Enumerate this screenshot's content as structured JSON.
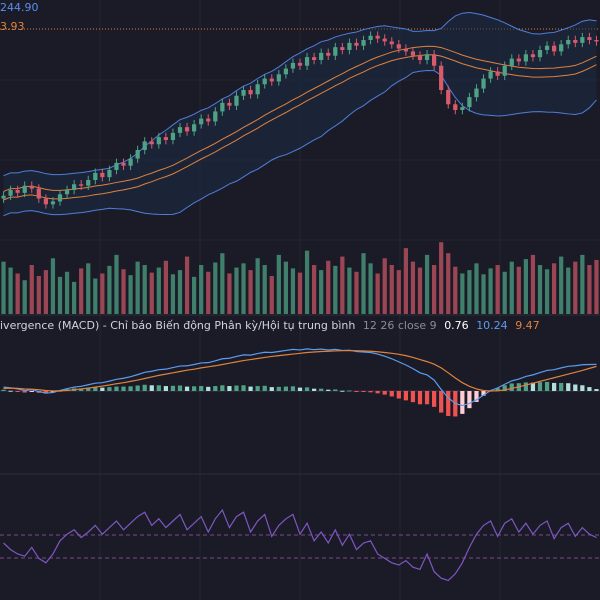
{
  "price_pane": {
    "upper_band_label": "244.90",
    "lower_band_label": "3.93",
    "colors": {
      "upper_label": "#5b8def",
      "lower_label": "#e0823d",
      "band_fill": "#1e2a44",
      "band_line": "#4e7fdd",
      "basis_line": "#e0823d",
      "up": "#4fa286",
      "down": "#d75b6b"
    }
  },
  "macd_legend": {
    "title": "ivergence (MACD) - Chỉ báo Biến động Phân kỳ/Hội tụ trung bình",
    "params": "12 26 close 9",
    "histogram": "0.76",
    "macd": "10.24",
    "signal": "9.47",
    "colors": {
      "histogram": "#ffffff",
      "macd": "#5b9cf0",
      "signal": "#e0823d"
    }
  },
  "chart_data": [
    {
      "type": "candlestick",
      "panel": "price",
      "overlays": [
        "bollinger-bands"
      ],
      "upper_band_last": 244.9,
      "close": [
        188,
        192,
        190,
        195,
        193,
        186,
        182,
        184,
        189,
        192,
        196,
        195,
        199,
        204,
        201,
        206,
        211,
        209,
        214,
        220,
        226,
        224,
        229,
        227,
        232,
        236,
        233,
        238,
        242,
        240,
        247,
        253,
        251,
        258,
        262,
        259,
        266,
        270,
        268,
        273,
        277,
        281,
        279,
        285,
        283,
        288,
        286,
        292,
        290,
        295,
        293,
        297,
        300,
        298,
        296,
        294,
        291,
        289,
        286,
        283,
        287,
        279,
        262,
        252,
        248,
        250,
        257,
        263,
        270,
        275,
        272,
        279,
        284,
        282,
        287,
        285,
        290,
        293,
        289,
        294,
        297,
        295,
        299,
        297,
        296
      ]
    },
    {
      "type": "bar",
      "panel": "volume",
      "values": [
        62,
        55,
        48,
        40,
        58,
        45,
        52,
        66,
        44,
        50,
        38,
        54,
        60,
        42,
        48,
        57,
        70,
        53,
        46,
        62,
        58,
        49,
        55,
        63,
        47,
        52,
        68,
        44,
        58,
        50,
        61,
        72,
        48,
        55,
        60,
        52,
        66,
        58,
        45,
        70,
        62,
        54,
        49,
        75,
        58,
        52,
        63,
        57,
        68,
        55,
        50,
        72,
        60,
        48,
        66,
        58,
        52,
        78,
        62,
        55,
        70,
        58,
        85,
        72,
        56,
        48,
        52,
        60,
        47,
        54,
        58,
        50,
        62,
        56,
        65,
        70,
        58,
        53,
        60,
        68,
        55,
        62,
        70,
        58,
        64
      ]
    },
    {
      "type": "line",
      "panel": "macd",
      "series": [
        {
          "name": "MACD",
          "values": [
            1.5,
            1.2,
            0.8,
            0.2,
            0.5,
            -0.2,
            -0.8,
            -0.6,
            0.2,
            0.9,
            1.5,
            1.8,
            2.4,
            3.0,
            3.2,
            3.8,
            4.5,
            4.9,
            5.5,
            6.3,
            7.2,
            7.6,
            8.2,
            8.4,
            9.0,
            9.6,
            9.7,
            10.2,
            10.8,
            10.9,
            11.6,
            12.4,
            12.6,
            13.3,
            13.9,
            13.8,
            14.4,
            14.9,
            14.8,
            15.2,
            15.6,
            16.0,
            15.8,
            16.2,
            15.9,
            16.1,
            15.8,
            16.0,
            15.6,
            15.7,
            15.2,
            15.0,
            14.8,
            14.2,
            13.4,
            12.4,
            11.2,
            10.0,
            8.6,
            7.0,
            6.2,
            4.2,
            0.6,
            -2.6,
            -4.8,
            -5.6,
            -4.8,
            -3.4,
            -1.6,
            0.2,
            1.2,
            2.6,
            3.9,
            4.6,
            5.6,
            6.2,
            7.1,
            7.9,
            8.2,
            8.9,
            9.5,
            9.7,
            10.1,
            10.2,
            10.24
          ]
        },
        {
          "name": "Signal",
          "values": [
            1.0,
            1.1,
            1.0,
            0.8,
            0.7,
            0.5,
            0.2,
            0.0,
            0.1,
            0.2,
            0.5,
            0.8,
            1.1,
            1.5,
            1.9,
            2.3,
            2.8,
            3.2,
            3.7,
            4.2,
            4.8,
            5.4,
            6.0,
            6.5,
            7.0,
            7.5,
            8.0,
            8.4,
            8.9,
            9.3,
            9.7,
            10.2,
            10.7,
            11.2,
            11.7,
            12.1,
            12.5,
            12.9,
            13.3,
            13.6,
            13.9,
            14.2,
            14.5,
            14.8,
            15.0,
            15.2,
            15.3,
            15.4,
            15.5,
            15.5,
            15.5,
            15.4,
            15.3,
            15.1,
            14.8,
            14.5,
            14.1,
            13.6,
            12.9,
            12.1,
            11.3,
            10.3,
            8.9,
            7.0,
            5.0,
            3.2,
            1.8,
            0.8,
            0.2,
            0.0,
            0.1,
            0.4,
            1.0,
            1.6,
            2.3,
            3.0,
            3.7,
            4.4,
            5.1,
            5.8,
            6.5,
            7.2,
            7.9,
            8.7,
            9.47
          ]
        }
      ],
      "histogram": [
        0.5,
        0.1,
        -0.2,
        -0.6,
        -0.2,
        -0.7,
        -1.0,
        -0.6,
        0.1,
        0.7,
        1.0,
        1.0,
        1.3,
        1.5,
        1.3,
        1.5,
        1.7,
        1.7,
        1.8,
        2.1,
        2.4,
        2.2,
        2.2,
        1.9,
        2.0,
        2.1,
        1.7,
        1.8,
        1.9,
        1.6,
        1.9,
        2.2,
        1.9,
        2.1,
        2.2,
        1.7,
        1.9,
        2.0,
        1.5,
        1.6,
        1.7,
        1.8,
        1.3,
        1.4,
        0.9,
        0.9,
        0.5,
        0.6,
        0.1,
        0.2,
        -0.3,
        -0.4,
        -0.5,
        -0.9,
        -1.4,
        -2.1,
        -2.9,
        -3.6,
        -4.3,
        -5.1,
        -5.1,
        -6.1,
        -8.3,
        -9.6,
        -9.8,
        -8.8,
        -6.6,
        -4.2,
        -1.8,
        0.2,
        1.1,
        2.2,
        2.9,
        3.0,
        3.3,
        3.2,
        3.4,
        3.5,
        3.1,
        3.1,
        3.0,
        2.5,
        2.2,
        1.5,
        0.76
      ]
    },
    {
      "type": "line",
      "panel": "oscillator",
      "values": [
        50,
        44,
        40,
        38,
        46,
        36,
        32,
        40,
        52,
        58,
        62,
        55,
        60,
        66,
        58,
        64,
        70,
        62,
        68,
        74,
        78,
        66,
        72,
        64,
        70,
        76,
        62,
        68,
        74,
        60,
        72,
        80,
        64,
        74,
        78,
        60,
        70,
        76,
        56,
        66,
        72,
        76,
        58,
        68,
        52,
        60,
        50,
        62,
        48,
        58,
        44,
        50,
        52,
        40,
        36,
        32,
        30,
        34,
        28,
        26,
        40,
        24,
        18,
        16,
        22,
        32,
        46,
        58,
        66,
        70,
        56,
        68,
        72,
        60,
        68,
        58,
        66,
        70,
        54,
        64,
        68,
        56,
        64,
        58,
        55
      ]
    }
  ]
}
